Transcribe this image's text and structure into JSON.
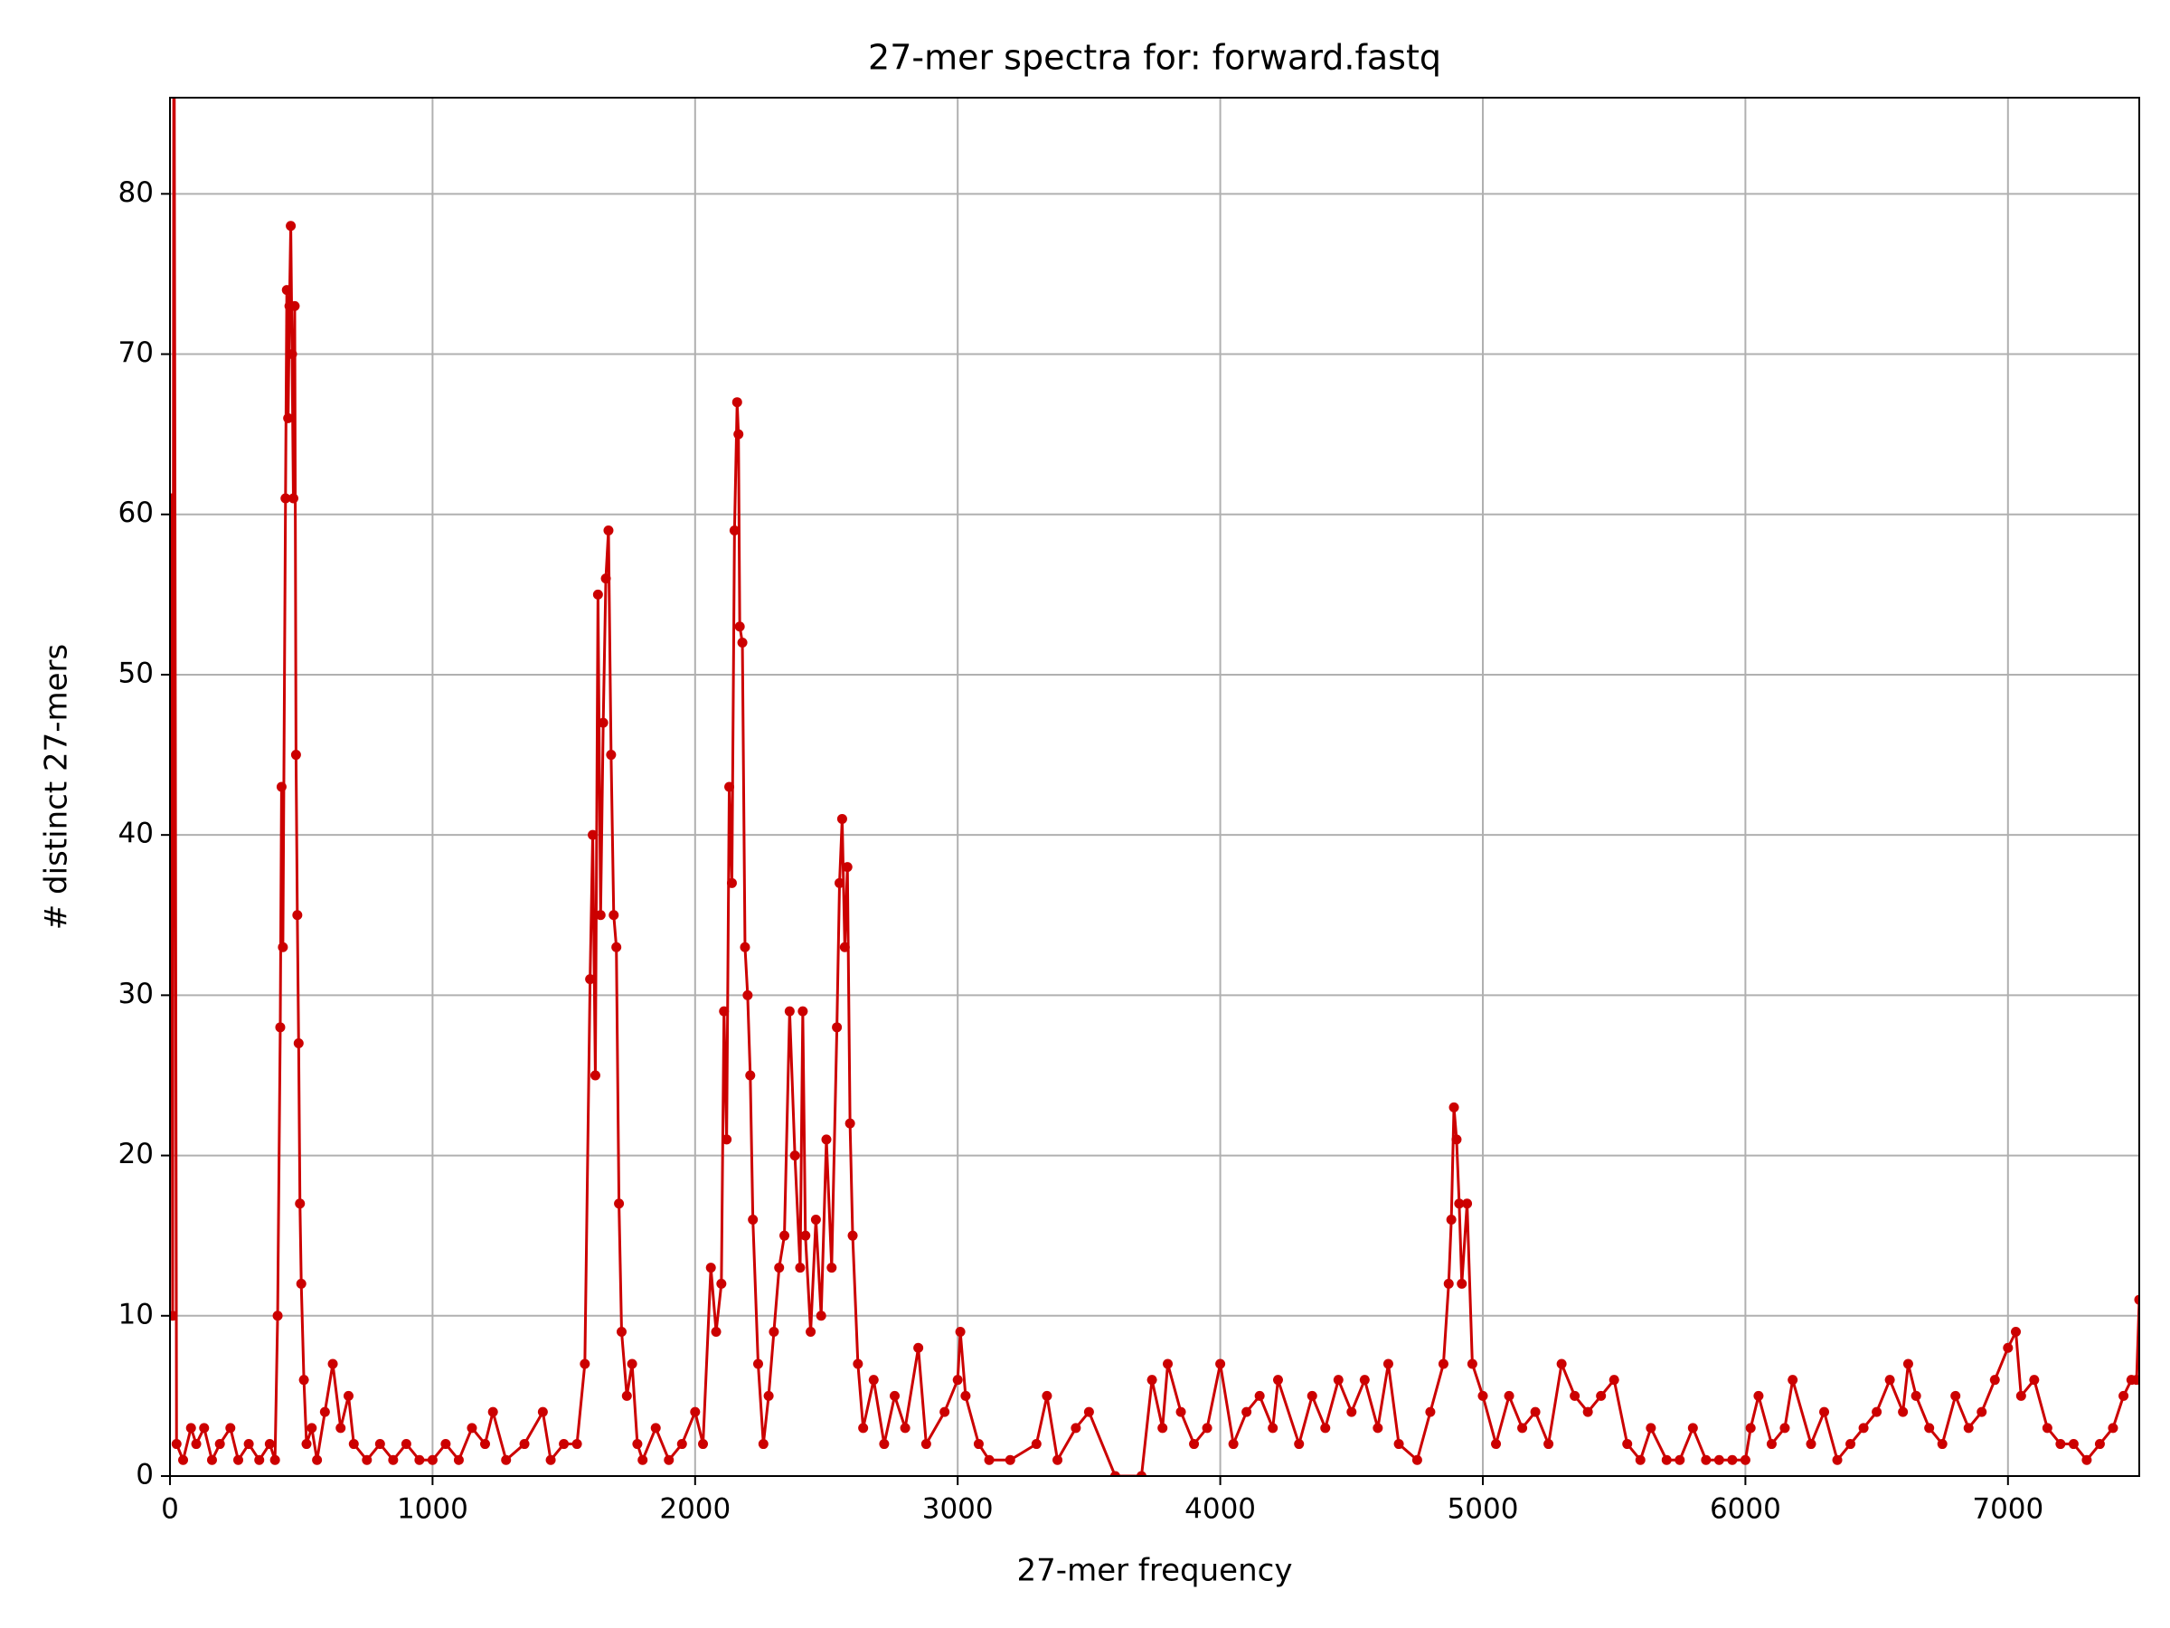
{
  "chart_data": {
    "type": "line",
    "title": "27-mer spectra for: forward.fastq",
    "x_label": "27-mer frequency",
    "y_label": "# distinct 27-mers",
    "xlim": [
      0,
      7500
    ],
    "ylim": [
      0,
      86
    ],
    "xticks": [
      0,
      1000,
      2000,
      3000,
      4000,
      5000,
      6000,
      7000
    ],
    "yticks": [
      0,
      10,
      20,
      30,
      40,
      50,
      60,
      70,
      80
    ],
    "grid": true,
    "series": [
      {
        "color": "#cc0000",
        "x": [
          5,
          10,
          15,
          25,
          50,
          80,
          100,
          130,
          160,
          190,
          230,
          260,
          300,
          340,
          380,
          400,
          410,
          420,
          425,
          430,
          440,
          445,
          450,
          455,
          460,
          465,
          470,
          475,
          480,
          485,
          490,
          495,
          500,
          510,
          520,
          540,
          560,
          590,
          620,
          650,
          680,
          700,
          750,
          800,
          850,
          900,
          950,
          1000,
          1050,
          1100,
          1150,
          1200,
          1230,
          1280,
          1350,
          1420,
          1450,
          1500,
          1550,
          1580,
          1600,
          1610,
          1620,
          1630,
          1640,
          1650,
          1660,
          1670,
          1680,
          1690,
          1700,
          1710,
          1720,
          1740,
          1760,
          1780,
          1800,
          1850,
          1900,
          1950,
          2000,
          2030,
          2060,
          2080,
          2100,
          2110,
          2120,
          2130,
          2140,
          2150,
          2160,
          2165,
          2170,
          2180,
          2190,
          2200,
          2210,
          2220,
          2240,
          2260,
          2280,
          2300,
          2320,
          2340,
          2360,
          2380,
          2400,
          2410,
          2420,
          2440,
          2460,
          2480,
          2500,
          2520,
          2540,
          2550,
          2560,
          2570,
          2580,
          2590,
          2600,
          2620,
          2640,
          2680,
          2720,
          2760,
          2800,
          2850,
          2880,
          2950,
          3000,
          3010,
          3030,
          3080,
          3120,
          3200,
          3300,
          3340,
          3380,
          3450,
          3500,
          3600,
          3700,
          3740,
          3780,
          3800,
          3850,
          3900,
          3950,
          4000,
          4050,
          4100,
          4150,
          4200,
          4220,
          4300,
          4350,
          4400,
          4450,
          4500,
          4550,
          4600,
          4640,
          4680,
          4750,
          4800,
          4850,
          4870,
          4880,
          4890,
          4900,
          4910,
          4920,
          4940,
          4960,
          5000,
          5050,
          5100,
          5150,
          5200,
          5250,
          5300,
          5350,
          5400,
          5450,
          5500,
          5550,
          5600,
          5640,
          5700,
          5750,
          5800,
          5850,
          5900,
          5950,
          6000,
          6020,
          6050,
          6100,
          6150,
          6180,
          6250,
          6300,
          6350,
          6400,
          6450,
          6500,
          6550,
          6600,
          6620,
          6650,
          6700,
          6750,
          6800,
          6850,
          6900,
          6950,
          7000,
          7030,
          7050,
          7100,
          7150,
          7200,
          7250,
          7300,
          7350,
          7400,
          7440,
          7470,
          7490,
          7500
        ],
        "values": [
          61,
          10,
          100,
          2,
          1,
          3,
          2,
          3,
          1,
          2,
          3,
          1,
          2,
          1,
          2,
          1,
          10,
          28,
          43,
          33,
          61,
          74,
          66,
          73,
          78,
          70,
          61,
          73,
          45,
          35,
          27,
          17,
          12,
          6,
          2,
          3,
          1,
          4,
          7,
          3,
          5,
          2,
          1,
          2,
          1,
          2,
          1,
          1,
          2,
          1,
          3,
          2,
          4,
          1,
          2,
          4,
          1,
          2,
          2,
          7,
          31,
          40,
          25,
          55,
          35,
          47,
          56,
          59,
          45,
          35,
          33,
          17,
          9,
          5,
          7,
          2,
          1,
          3,
          1,
          2,
          4,
          2,
          13,
          9,
          12,
          29,
          21,
          43,
          37,
          59,
          67,
          65,
          53,
          52,
          33,
          30,
          25,
          16,
          7,
          2,
          5,
          9,
          13,
          15,
          29,
          20,
          13,
          29,
          15,
          9,
          16,
          10,
          21,
          13,
          28,
          37,
          41,
          33,
          38,
          22,
          15,
          7,
          3,
          6,
          2,
          5,
          3,
          8,
          2,
          4,
          6,
          9,
          5,
          2,
          1,
          1,
          2,
          5,
          1,
          3,
          4,
          0,
          0,
          6,
          3,
          7,
          4,
          2,
          3,
          7,
          2,
          4,
          5,
          3,
          6,
          2,
          5,
          3,
          6,
          4,
          6,
          3,
          7,
          2,
          1,
          4,
          7,
          12,
          16,
          23,
          21,
          17,
          12,
          17,
          7,
          5,
          2,
          5,
          3,
          4,
          2,
          7,
          5,
          4,
          5,
          6,
          2,
          1,
          3,
          1,
          1,
          3,
          1,
          1,
          1,
          1,
          3,
          5,
          2,
          3,
          6,
          2,
          4,
          1,
          2,
          3,
          4,
          6,
          4,
          7,
          5,
          3,
          2,
          5,
          3,
          4,
          6,
          8,
          9,
          5,
          6,
          3,
          2,
          2,
          1,
          2,
          3,
          5,
          6,
          6,
          11
        ]
      }
    ]
  }
}
